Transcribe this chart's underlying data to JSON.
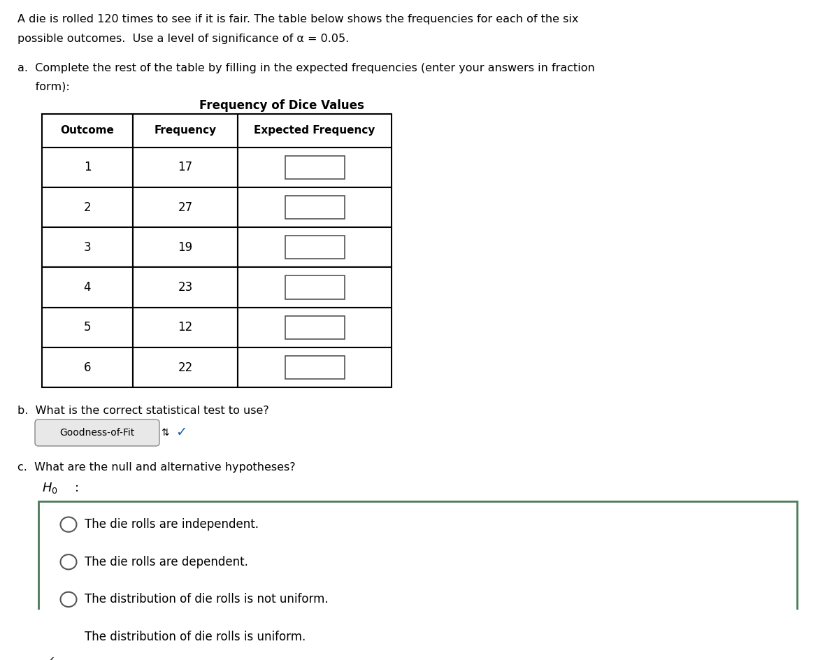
{
  "title_line1": "A die is rolled 120 times to see if it is fair. The table below shows the frequencies for each of the six",
  "title_line2": "possible outcomes.  Use a level of significance of α = 0.05.",
  "part_a_label": "a.  Complete the rest of the table by filling in the expected frequencies (enter your answers in fraction",
  "part_a_label2": "     form):",
  "table_title": "Frequency of Dice Values",
  "col_headers": [
    "Outcome",
    "Frequency",
    "Expected Frequency"
  ],
  "outcomes": [
    1,
    2,
    3,
    4,
    5,
    6
  ],
  "frequencies": [
    17,
    27,
    19,
    23,
    12,
    22
  ],
  "part_b_label": "b.  What is the correct statistical test to use?",
  "goodness_label": "Goodness-of-Fit",
  "part_c_label": "c.  What are the null and alternative hypotheses?",
  "options": [
    "The die rolls are independent.",
    "The die rolls are dependent.",
    "The distribution of die rolls is not uniform.",
    "The distribution of die rolls is uniform."
  ],
  "selected_option": 3,
  "bg_color": "#ffffff",
  "text_color": "#000000",
  "table_border_color": "#000000",
  "goodness_bg": "#e8e8e8",
  "goodness_border": "#888888",
  "radio_selected_color": "#1a5fa8",
  "box_border_green": "#4a7c59",
  "checkmark_color": "#1a5fa8",
  "input_box_color": "#555555"
}
